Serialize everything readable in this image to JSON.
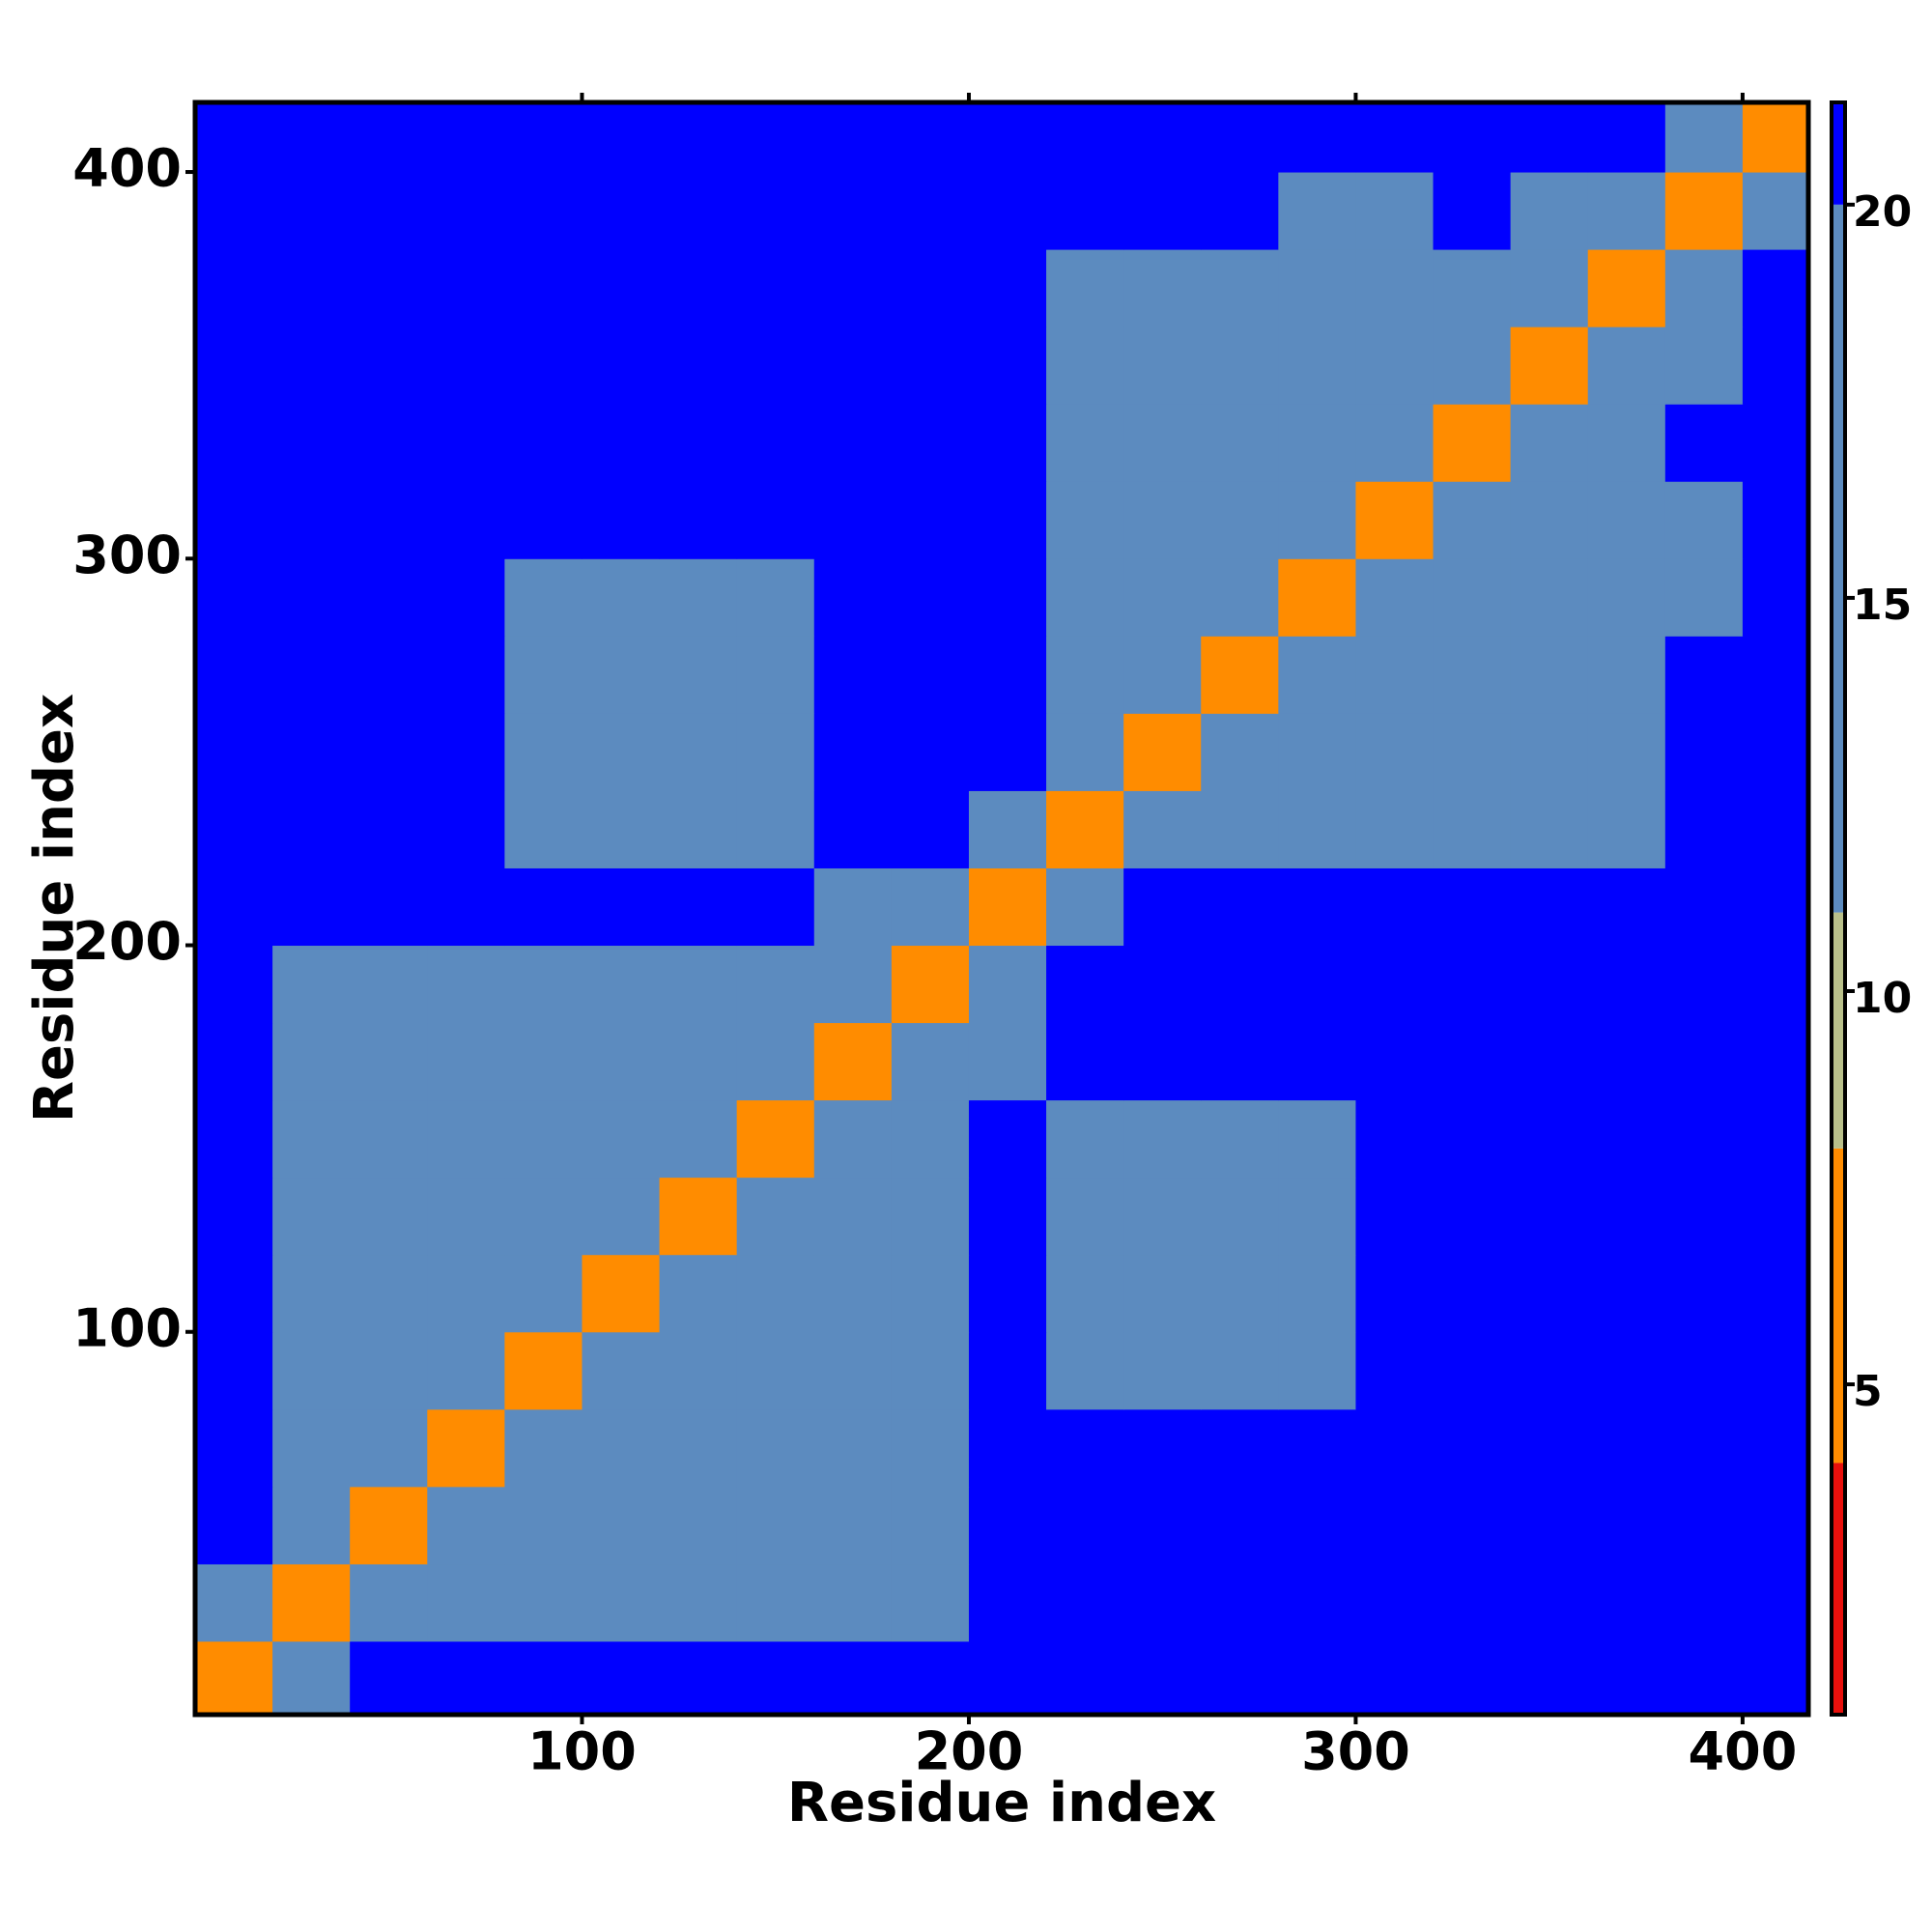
{
  "chart_data": {
    "type": "heatmap",
    "xlabel": "Residue index",
    "ylabel": "Residue index",
    "x": [
      10,
      30,
      50,
      70,
      90,
      110,
      130,
      150,
      170,
      190,
      210,
      230,
      250,
      270,
      290,
      310,
      330,
      350,
      370,
      390,
      410
    ],
    "y": [
      10,
      30,
      50,
      70,
      90,
      110,
      130,
      150,
      170,
      190,
      210,
      230,
      250,
      270,
      290,
      310,
      330,
      350,
      370,
      390,
      410
    ],
    "z": [
      [
        6,
        14,
        21,
        21,
        21,
        21,
        21,
        21,
        21,
        21,
        21,
        21,
        21,
        21,
        21,
        21,
        21,
        21,
        21,
        21,
        21
      ],
      [
        14,
        6,
        11,
        15,
        15,
        15,
        15,
        15,
        15,
        15,
        21,
        21,
        21,
        21,
        21,
        21,
        21,
        21,
        21,
        21,
        21
      ],
      [
        21,
        11,
        6,
        11,
        15,
        15,
        15,
        15,
        15,
        15,
        21,
        21,
        21,
        21,
        21,
        21,
        21,
        21,
        21,
        21,
        21
      ],
      [
        21,
        15,
        11,
        6,
        11,
        15,
        15,
        15,
        15,
        15,
        21,
        21,
        21,
        21,
        21,
        21,
        21,
        21,
        21,
        21,
        21
      ],
      [
        21,
        15,
        15,
        11,
        6,
        11,
        15,
        15,
        15,
        15,
        21,
        19,
        19,
        19,
        19,
        21,
        21,
        21,
        21,
        21,
        21
      ],
      [
        21,
        15,
        15,
        15,
        11,
        6,
        11,
        15,
        15,
        15,
        21,
        19,
        19,
        19,
        19,
        21,
        21,
        21,
        21,
        21,
        21
      ],
      [
        21,
        15,
        15,
        15,
        15,
        11,
        6,
        11,
        15,
        15,
        21,
        19,
        19,
        19,
        19,
        21,
        21,
        21,
        21,
        21,
        21
      ],
      [
        21,
        15,
        15,
        15,
        15,
        15,
        11,
        6,
        11,
        15,
        21,
        19,
        19,
        19,
        19,
        21,
        21,
        21,
        21,
        21,
        21
      ],
      [
        21,
        15,
        15,
        15,
        15,
        15,
        15,
        11,
        6,
        11,
        13,
        21,
        21,
        21,
        21,
        21,
        21,
        21,
        21,
        21,
        21
      ],
      [
        21,
        15,
        15,
        15,
        15,
        15,
        15,
        15,
        11,
        6,
        13,
        21,
        21,
        21,
        21,
        21,
        21,
        21,
        21,
        21,
        21
      ],
      [
        21,
        21,
        21,
        21,
        21,
        21,
        21,
        21,
        13,
        13,
        6,
        13,
        21,
        21,
        21,
        21,
        21,
        21,
        21,
        21,
        21
      ],
      [
        21,
        21,
        21,
        21,
        19,
        19,
        19,
        19,
        21,
        21,
        13,
        6,
        11,
        15,
        15,
        15,
        15,
        15,
        15,
        21,
        21
      ],
      [
        21,
        21,
        21,
        21,
        19,
        19,
        19,
        19,
        21,
        21,
        21,
        11,
        6,
        11,
        15,
        15,
        15,
        15,
        15,
        21,
        21
      ],
      [
        21,
        21,
        21,
        21,
        19,
        19,
        19,
        19,
        21,
        21,
        21,
        15,
        11,
        6,
        11,
        15,
        15,
        15,
        15,
        21,
        21
      ],
      [
        21,
        21,
        21,
        21,
        19,
        19,
        19,
        19,
        21,
        21,
        21,
        15,
        15,
        11,
        6,
        11,
        15,
        15,
        15,
        19,
        21
      ],
      [
        21,
        21,
        21,
        21,
        21,
        21,
        21,
        21,
        21,
        21,
        21,
        15,
        15,
        15,
        11,
        6,
        11,
        15,
        15,
        19,
        21
      ],
      [
        21,
        21,
        21,
        21,
        21,
        21,
        21,
        21,
        21,
        21,
        21,
        15,
        15,
        15,
        15,
        11,
        6,
        11,
        15,
        21,
        21
      ],
      [
        21,
        21,
        21,
        21,
        21,
        21,
        21,
        21,
        21,
        21,
        21,
        15,
        15,
        15,
        15,
        15,
        11,
        6,
        11,
        16,
        21
      ],
      [
        21,
        21,
        21,
        21,
        21,
        21,
        21,
        21,
        21,
        21,
        21,
        15,
        15,
        15,
        15,
        15,
        15,
        11,
        6,
        14,
        21
      ],
      [
        21,
        21,
        21,
        21,
        21,
        21,
        21,
        21,
        21,
        21,
        21,
        21,
        21,
        21,
        19,
        19,
        21,
        16,
        14,
        6,
        14
      ],
      [
        21,
        21,
        21,
        21,
        21,
        21,
        21,
        21,
        21,
        21,
        21,
        21,
        21,
        21,
        21,
        21,
        21,
        21,
        21,
        14,
        6
      ]
    ],
    "xlim": [
      0,
      417
    ],
    "ylim": [
      1,
      418
    ],
    "xticks": [
      100,
      200,
      300,
      400
    ],
    "yticks": [
      100,
      200,
      300,
      400
    ],
    "zlim": [
      0.8,
      21.3
    ],
    "zticks": [
      5,
      10,
      15,
      20
    ],
    "colorscale": [
      [
        4,
        "#e8100c"
      ],
      [
        8,
        "#ff8c00"
      ],
      [
        11,
        "#b9c08a"
      ],
      [
        20,
        "#5c8bbf"
      ],
      [
        21.3,
        "#0000ff"
      ]
    ]
  }
}
